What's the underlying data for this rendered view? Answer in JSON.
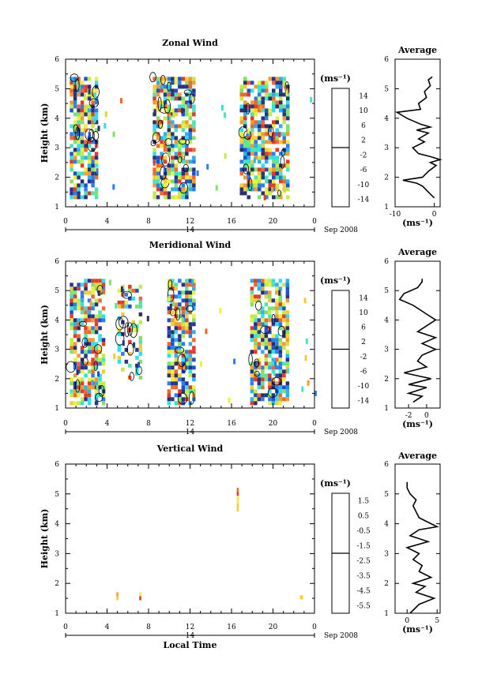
{
  "shared": {
    "x_ticks": [
      "0",
      "4",
      "8",
      "12",
      "16",
      "20",
      "0"
    ],
    "y_ticks": [
      "1",
      "2",
      "3",
      "4",
      "5",
      "6"
    ],
    "day_label": "14",
    "month_label": "Sep 2008",
    "xlabel": "Local Time",
    "ylabel": "Height (km)",
    "unit": "(ms⁻¹)",
    "avg_title": "Average"
  },
  "chart_data": [
    {
      "type": "heatmap",
      "title": "Zonal Wind",
      "xlabel": "",
      "ylabel": "Height (km)",
      "xlim": [
        0,
        24
      ],
      "ylim": [
        1,
        6
      ],
      "colorbar": {
        "unit": "(ms⁻¹)",
        "tick_labels": [
          "14",
          "10",
          "6",
          "2",
          "-2",
          "-6",
          "-10",
          "-14"
        ],
        "range": [
          -16,
          16
        ]
      },
      "data_columns": [
        {
          "x": [
            0.4,
            3.0
          ],
          "ylim": [
            1.3,
            5.4
          ]
        },
        {
          "x": [
            8.4,
            9.8
          ],
          "ylim": [
            1.3,
            5.4
          ]
        },
        {
          "x": [
            9.8,
            12.4
          ],
          "ylim": [
            1.3,
            5.4
          ]
        },
        {
          "x": [
            16.8,
            21.4
          ],
          "ylim": [
            1.3,
            5.4
          ]
        }
      ],
      "average_profile": {
        "title": "Average",
        "xlim": [
          -10,
          1.5
        ],
        "x_ticks": [
          "-10",
          "0"
        ],
        "height": [
          1.3,
          1.5,
          1.7,
          1.8,
          1.9,
          2.0,
          2.2,
          2.4,
          2.5,
          2.6,
          2.7,
          2.8,
          3.0,
          3.2,
          3.3,
          3.5,
          3.6,
          3.7,
          3.8,
          4.0,
          4.2,
          4.3,
          4.5,
          4.7,
          4.9,
          5.1,
          5.3,
          5.4
        ],
        "value": [
          0.0,
          -1.5,
          -3.0,
          -4.5,
          -8.0,
          -3.0,
          -1.5,
          0.5,
          -1.0,
          1.5,
          -1.0,
          -4.0,
          -5.5,
          -2.5,
          -4.0,
          -1.5,
          -4.5,
          -1.0,
          -3.5,
          -7.0,
          -9.5,
          -3.5,
          -4.0,
          -2.0,
          -2.5,
          -1.0,
          -1.5,
          -0.5
        ]
      }
    },
    {
      "type": "heatmap",
      "title": "Meridional Wind",
      "xlabel": "",
      "ylabel": "Height (km)",
      "xlim": [
        0,
        24
      ],
      "ylim": [
        1,
        6
      ],
      "colorbar": {
        "unit": "(ms⁻¹)",
        "tick_labels": [
          "14",
          "10",
          "6",
          "2",
          "-2",
          "-6",
          "-10",
          "-14"
        ],
        "range": [
          -16,
          16
        ]
      },
      "data_columns": [
        {
          "x": [
            0.4,
            3.6
          ],
          "ylim": [
            1.2,
            5.4
          ]
        },
        {
          "x": [
            5.0,
            7.4
          ],
          "ylim": [
            2.0,
            5.2
          ]
        },
        {
          "x": [
            9.8,
            12.4
          ],
          "ylim": [
            1.2,
            5.4
          ]
        },
        {
          "x": [
            17.8,
            21.4
          ],
          "ylim": [
            1.2,
            5.4
          ]
        }
      ],
      "average_profile": {
        "title": "Average",
        "xlim": [
          -3.5,
          1.5
        ],
        "x_ticks": [
          "-2",
          "0"
        ],
        "height": [
          1.2,
          1.4,
          1.5,
          1.7,
          1.8,
          2.0,
          2.1,
          2.2,
          2.4,
          2.6,
          2.8,
          3.0,
          3.2,
          3.4,
          3.6,
          3.8,
          4.0,
          4.2,
          4.5,
          4.7,
          4.9,
          5.1,
          5.3,
          5.4
        ],
        "value": [
          -1.5,
          -0.5,
          -2.0,
          0.0,
          -2.0,
          0.5,
          -1.0,
          -2.5,
          0.0,
          -1.0,
          -0.5,
          1.0,
          -0.5,
          1.0,
          -1.0,
          0.0,
          1.0,
          0.0,
          -1.5,
          -3.0,
          -2.5,
          -1.0,
          -0.5,
          -0.5
        ]
      }
    },
    {
      "type": "heatmap",
      "title": "Vertical Wind",
      "xlabel": "Local Time",
      "ylabel": "Height (km)",
      "xlim": [
        0,
        24
      ],
      "ylim": [
        1,
        6
      ],
      "colorbar": {
        "unit": "(ms⁻¹)",
        "tick_labels": [
          "1.5",
          "0.5",
          "-0.5",
          "-1.5",
          "-2.5",
          "-3.5",
          "-4.5",
          "-5.5"
        ],
        "range": [
          -6,
          2
        ]
      },
      "data_columns": [
        {
          "x": [
            4.9,
            5.1
          ],
          "ylim": [
            1.5,
            1.7
          ]
        },
        {
          "x": [
            7.1,
            7.3
          ],
          "ylim": [
            1.5,
            1.7
          ]
        },
        {
          "x": [
            16.5,
            16.7
          ],
          "ylim": [
            4.5,
            5.2
          ]
        },
        {
          "x": [
            22.6,
            22.9
          ],
          "ylim": [
            1.5,
            1.6
          ]
        }
      ],
      "average_profile": {
        "title": "Average",
        "xlim": [
          -2.0,
          5.5
        ],
        "x_ticks": [
          "0",
          "5"
        ],
        "height": [
          1.0,
          1.3,
          1.5,
          1.7,
          1.9,
          2.0,
          2.2,
          2.4,
          2.6,
          2.8,
          3.0,
          3.2,
          3.4,
          3.6,
          3.8,
          3.9,
          4.0,
          4.2,
          4.4,
          4.6,
          4.8,
          5.0,
          5.2,
          5.4
        ],
        "value": [
          0.5,
          2.0,
          4.5,
          1.5,
          3.0,
          1.0,
          4.0,
          2.0,
          2.5,
          1.0,
          2.0,
          0.0,
          3.5,
          0.5,
          2.0,
          5.0,
          4.0,
          2.0,
          1.5,
          1.0,
          1.5,
          0.5,
          0.0,
          0.0
        ]
      }
    }
  ]
}
